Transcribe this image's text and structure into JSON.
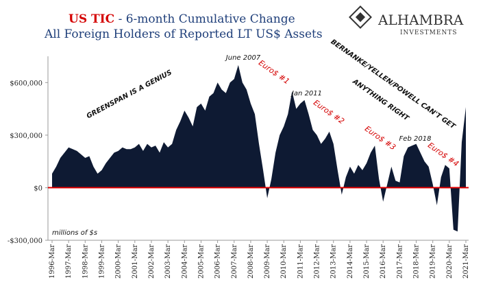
{
  "chart_data": {
    "type": "area",
    "title_prefix": "US TIC",
    "title": "- 6-month Cumulative Change",
    "subtitle": "All Foreign Holders of Reported LT US$ Assets",
    "logo": "ALHAMBRA",
    "logo_sub": "INVESTMENTS",
    "unit_note": "millions of $s",
    "annotations": [
      "GREENSPAN IS A GENIUS",
      "June 2007",
      "Euro$ #1",
      "Jan 2011",
      "Euro$ #2",
      "BERNANKE/YELLEN/POWELL CAN'T GET",
      "ANYTHING RIGHT",
      "Euro$ #3",
      "Feb 2018",
      "Euro$ #4"
    ],
    "x": [
      "1996-Mar",
      "1996-Jun",
      "1996-Sep",
      "1996-Dec",
      "1997-Mar",
      "1997-Jun",
      "1997-Sep",
      "1997-Dec",
      "1998-Mar",
      "1998-Jun",
      "1998-Sep",
      "1998-Dec",
      "1999-Mar",
      "1999-Jun",
      "1999-Sep",
      "1999-Dec",
      "2000-Mar",
      "2000-Jun",
      "2000-Sep",
      "2000-Dec",
      "2001-Mar",
      "2001-Jun",
      "2001-Sep",
      "2001-Dec",
      "2002-Mar",
      "2002-Jun",
      "2002-Sep",
      "2002-Dec",
      "2003-Mar",
      "2003-Jun",
      "2003-Sep",
      "2003-Dec",
      "2004-Mar",
      "2004-Jun",
      "2004-Sep",
      "2004-Dec",
      "2005-Mar",
      "2005-Jun",
      "2005-Sep",
      "2005-Dec",
      "2006-Mar",
      "2006-Jun",
      "2006-Sep",
      "2006-Dec",
      "2007-Mar",
      "2007-Jun",
      "2007-Sep",
      "2007-Dec",
      "2008-Mar",
      "2008-Jun",
      "2008-Sep",
      "2008-Dec",
      "2009-Mar",
      "2009-Jun",
      "2009-Sep",
      "2009-Dec",
      "2010-Mar",
      "2010-Jun",
      "2010-Sep",
      "2010-Dec",
      "2011-Mar",
      "2011-Jun",
      "2011-Sep",
      "2011-Dec",
      "2012-Mar",
      "2012-Jun",
      "2012-Sep",
      "2012-Dec",
      "2013-Mar",
      "2013-Jun",
      "2013-Sep",
      "2013-Dec",
      "2014-Mar",
      "2014-Jun",
      "2014-Sep",
      "2014-Dec",
      "2015-Mar",
      "2015-Jun",
      "2015-Sep",
      "2015-Dec",
      "2016-Mar",
      "2016-Jun",
      "2016-Sep",
      "2016-Dec",
      "2017-Mar",
      "2017-Jun",
      "2017-Sep",
      "2017-Dec",
      "2018-Mar",
      "2018-Jun",
      "2018-Sep",
      "2018-Dec",
      "2019-Mar",
      "2019-Jun",
      "2019-Sep",
      "2019-Dec",
      "2020-Mar",
      "2020-Jun",
      "2020-Sep",
      "2020-Dec",
      "2021-Mar"
    ],
    "values": [
      80000,
      120000,
      170000,
      200000,
      230000,
      220000,
      210000,
      190000,
      170000,
      180000,
      120000,
      80000,
      100000,
      140000,
      170000,
      200000,
      210000,
      230000,
      220000,
      220000,
      230000,
      250000,
      210000,
      250000,
      230000,
      240000,
      200000,
      260000,
      230000,
      250000,
      330000,
      380000,
      440000,
      400000,
      350000,
      460000,
      480000,
      440000,
      520000,
      540000,
      600000,
      560000,
      540000,
      600000,
      620000,
      700000,
      600000,
      560000,
      480000,
      420000,
      250000,
      100000,
      -60000,
      50000,
      200000,
      300000,
      350000,
      420000,
      550000,
      450000,
      480000,
      500000,
      420000,
      330000,
      300000,
      250000,
      280000,
      320000,
      250000,
      100000,
      -40000,
      60000,
      120000,
      80000,
      130000,
      100000,
      140000,
      200000,
      240000,
      50000,
      -80000,
      20000,
      120000,
      40000,
      30000,
      180000,
      230000,
      240000,
      250000,
      200000,
      150000,
      120000,
      20000,
      -100000,
      60000,
      130000,
      110000,
      -240000,
      -250000,
      260000,
      460000
    ],
    "color": "#0e1a33",
    "zero_line_color": "#e00000",
    "xticks": [
      "1996-Mar",
      "1997-Mar",
      "1998-Mar",
      "1999-Mar",
      "2000-Mar",
      "2001-Mar",
      "2002-Mar",
      "2003-Mar",
      "2004-Mar",
      "2005-Mar",
      "2006-Mar",
      "2007-Mar",
      "2008-Mar",
      "2009-Mar",
      "2010-Mar",
      "2011-Mar",
      "2012-Mar",
      "2013-Mar",
      "2014-Mar",
      "2015-Mar",
      "2016-Mar",
      "2017-Mar",
      "2018-Mar",
      "2019-Mar",
      "2020-Mar",
      "2021-Mar"
    ],
    "ylim": [
      -300000,
      750000
    ],
    "yticks": [
      {
        "value": -300000,
        "label": "-$300,000"
      },
      {
        "value": 0,
        "label": "$0"
      },
      {
        "value": 300000,
        "label": "$300,000"
      },
      {
        "value": 600000,
        "label": "$600,000"
      }
    ]
  }
}
